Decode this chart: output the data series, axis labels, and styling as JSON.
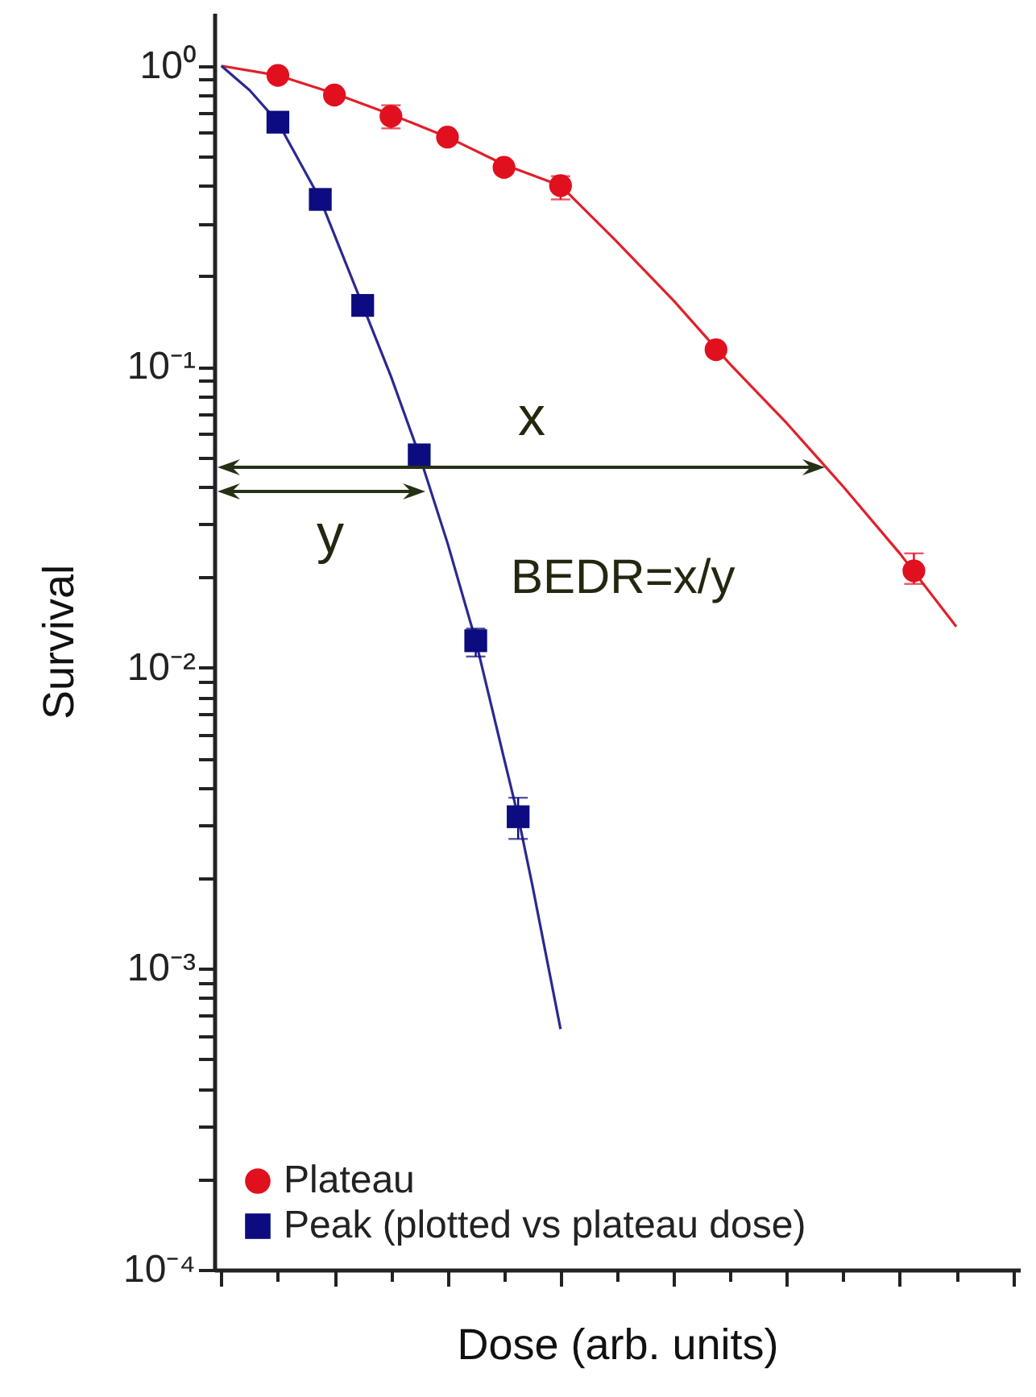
{
  "chart_data": {
    "type": "scatter",
    "xlabel": "Dose (arb. units)",
    "ylabel": "Survival",
    "log": "y",
    "grid": false,
    "legend": "bottom left",
    "categories": [
      null,
      null,
      null,
      null,
      null,
      null,
      null,
      null,
      null,
      null,
      null,
      null,
      null,
      null,
      null,
      null,
      null,
      null,
      null,
      null,
      null,
      null,
      null,
      null,
      null,
      null,
      null,
      null,
      null,
      null,
      null,
      null,
      null,
      null,
      null,
      null,
      null,
      null,
      null,
      null,
      null,
      null,
      null,
      null,
      null,
      null,
      null,
      null,
      null,
      null,
      null,
      null,
      null,
      null,
      null,
      null,
      null
    ],
    "ylim": [
      0.0001,
      1.5
    ],
    "yticks": [
      {
        "value": 0.0001,
        "label": "10⁻⁴"
      },
      {
        "value": 0.0002,
        "label": null
      },
      {
        "value": 0.0003,
        "label": null
      },
      {
        "value": 0.0004,
        "label": null
      },
      {
        "value": 0.0005,
        "label": null
      },
      {
        "value": 0.0006,
        "label": null
      },
      {
        "value": 0.0007,
        "label": null
      },
      {
        "value": 0.0008,
        "label": null
      },
      {
        "value": 0.0009,
        "label": null
      },
      {
        "value": 0.001,
        "label": "10⁻³"
      },
      {
        "value": 0.002,
        "label": null
      },
      {
        "value": 0.003,
        "label": null
      },
      {
        "value": 0.004,
        "label": null
      },
      {
        "value": 0.005,
        "label": null
      },
      {
        "value": 0.006,
        "label": null
      },
      {
        "value": 0.007,
        "label": null
      },
      {
        "value": 0.008,
        "label": null
      },
      {
        "value": 0.009,
        "label": null
      },
      {
        "value": 0.01,
        "label": "10⁻²"
      },
      {
        "value": 0.02,
        "label": null
      },
      {
        "value": 0.03,
        "label": null
      },
      {
        "value": 0.04,
        "label": null
      },
      {
        "value": 0.05,
        "label": null
      },
      {
        "value": 0.06,
        "label": null
      },
      {
        "value": 0.07,
        "label": null
      },
      {
        "value": 0.08,
        "label": null
      },
      {
        "value": 0.09,
        "label": null
      },
      {
        "value": 0.1,
        "label": "10⁻¹"
      },
      {
        "value": 0.2,
        "label": null
      },
      {
        "value": 0.3,
        "label": null
      },
      {
        "value": 0.4,
        "label": null
      },
      {
        "value": 0.5,
        "label": null
      },
      {
        "value": 0.6,
        "label": null
      },
      {
        "value": 0.7,
        "label": null
      },
      {
        "value": 0.8,
        "label": null
      },
      {
        "value": 0.9,
        "label": null
      },
      {
        "value": 1,
        "label": "10⁰"
      }
    ],
    "series": [
      {
        "type": "line",
        "color": "#e0202a",
        "marker": "none",
        "values": [
          1.0,
          null,
          null,
          null,
          0.93,
          null,
          null,
          null,
          0.81,
          null,
          null,
          null,
          0.69,
          null,
          null,
          null,
          0.58,
          null,
          null,
          null,
          0.47,
          null,
          null,
          null,
          0.4,
          null,
          null,
          null,
          0.26,
          null,
          null,
          null,
          0.166,
          null,
          null,
          null,
          0.102,
          null,
          null,
          null,
          0.065,
          null,
          null,
          null,
          0.04,
          null,
          null,
          null,
          0.024,
          null,
          null,
          null,
          0.0137,
          null,
          null,
          null,
          null
        ]
      },
      {
        "type": "line",
        "color": "#2a2a90",
        "marker": "none",
        "values": [
          1.0,
          null,
          0.83,
          null,
          0.65,
          null,
          null,
          0.36,
          null,
          null,
          0.16,
          null,
          0.093,
          null,
          0.051,
          null,
          0.026,
          null,
          0.0123,
          null,
          0.005,
          0.0032,
          0.0019,
          null,
          0.00063,
          null,
          null,
          null,
          null,
          null,
          null,
          null,
          null,
          null,
          null,
          null,
          null,
          null,
          null,
          null,
          null,
          null,
          null,
          null,
          null,
          null,
          null,
          null,
          null,
          null,
          null,
          null,
          null,
          null,
          null,
          null,
          null
        ]
      },
      {
        "type": "scatter",
        "name": "Plateau",
        "color": "#e0101e",
        "marker": "circle",
        "values": [
          null,
          null,
          null,
          null,
          0.93,
          null,
          null,
          null,
          0.8,
          null,
          null,
          null,
          0.68,
          null,
          null,
          null,
          0.58,
          null,
          null,
          null,
          0.46,
          null,
          null,
          null,
          0.4,
          null,
          null,
          null,
          null,
          null,
          null,
          null,
          null,
          null,
          null,
          0.114,
          null,
          null,
          null,
          null,
          null,
          null,
          null,
          null,
          null,
          null,
          null,
          null,
          null,
          0.021,
          null,
          null,
          null,
          null,
          null,
          null,
          null
        ],
        "errors": [
          null,
          null,
          null,
          null,
          null,
          null,
          null,
          null,
          null,
          null,
          null,
          null,
          [
            0.62,
            0.74
          ],
          null,
          null,
          null,
          null,
          null,
          null,
          null,
          null,
          null,
          null,
          null,
          [
            0.36,
            0.43
          ],
          null,
          null,
          null,
          null,
          null,
          null,
          null,
          null,
          null,
          null,
          null,
          null,
          null,
          null,
          null,
          null,
          null,
          null,
          null,
          null,
          null,
          null,
          null,
          null,
          [
            0.019,
            0.024
          ],
          null,
          null,
          null,
          null,
          null,
          null,
          null
        ]
      },
      {
        "type": "scatter",
        "name": "Peak (plotted vs plateau dose)",
        "color": "#0c0c80",
        "marker": "square",
        "values": [
          null,
          null,
          null,
          null,
          0.65,
          null,
          null,
          0.36,
          null,
          null,
          0.16,
          null,
          null,
          null,
          0.051,
          null,
          null,
          null,
          0.0123,
          null,
          null,
          0.0032,
          null,
          null,
          null,
          null,
          null,
          null,
          null,
          null,
          null,
          null,
          null,
          null,
          null,
          null,
          null,
          null,
          null,
          null,
          null,
          null,
          null,
          null,
          null,
          null,
          null,
          null,
          null,
          null,
          null,
          null,
          null,
          null,
          null,
          null,
          null
        ],
        "errors": [
          null,
          null,
          null,
          null,
          null,
          null,
          null,
          null,
          null,
          null,
          null,
          null,
          null,
          null,
          null,
          null,
          null,
          null,
          [
            0.0109,
            0.0135
          ],
          null,
          null,
          [
            0.0027,
            0.0037
          ],
          null,
          null,
          null,
          null,
          null,
          null,
          null,
          null,
          null,
          null,
          null,
          null,
          null,
          null,
          null,
          null,
          null,
          null,
          null,
          null,
          null,
          null,
          null,
          null,
          null,
          null,
          null,
          null,
          null,
          null,
          null,
          null,
          null,
          null,
          null
        ]
      }
    ],
    "annotations": [
      "x",
      "y",
      "BEDR=x/y"
    ]
  }
}
